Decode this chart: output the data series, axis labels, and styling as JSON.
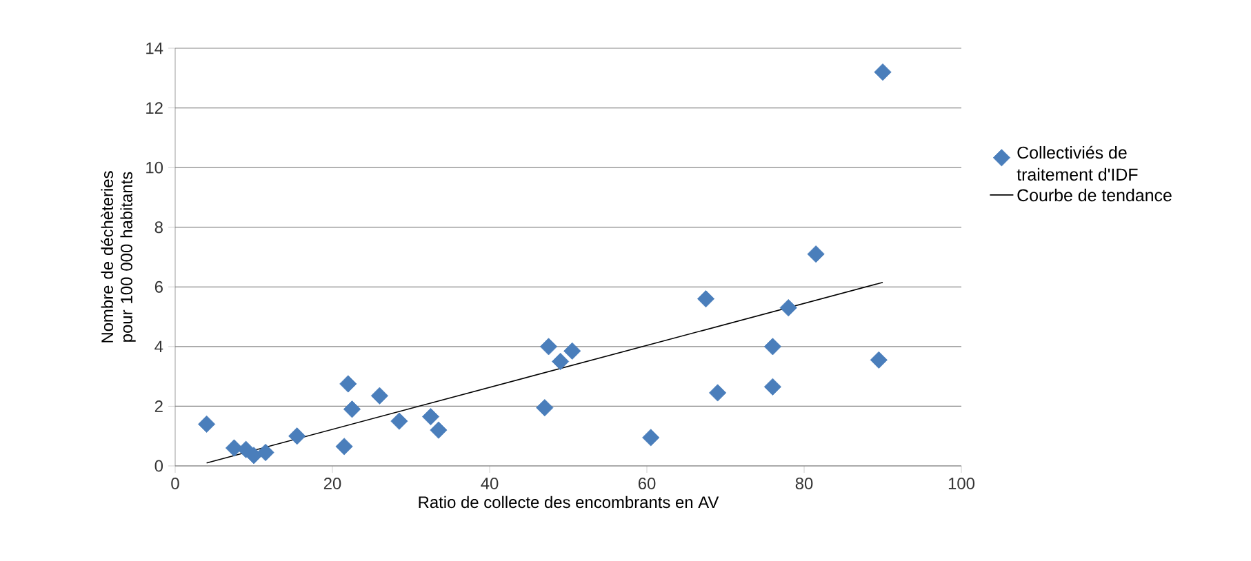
{
  "chart_data": {
    "type": "scatter",
    "xlabel": "Ratio de collecte des encombrants en AV",
    "ylabel": "Nombre de déchèteries pour 100 000 habitants",
    "xlim": [
      0,
      100
    ],
    "ylim": [
      0,
      14
    ],
    "xticks": [
      0,
      20,
      40,
      60,
      80,
      100
    ],
    "yticks": [
      0,
      2,
      4,
      6,
      8,
      10,
      12,
      14
    ],
    "grid": "y",
    "legend": "right",
    "marker": "diamond",
    "series": [
      {
        "name": "Collectiviés de traitement d'IDF",
        "color": "#4a7ebb",
        "x": [
          4,
          7.5,
          9,
          10,
          11.5,
          15.5,
          21.5,
          22,
          22.5,
          26,
          28.5,
          32.5,
          33.5,
          47,
          47.5,
          49,
          50.5,
          60.5,
          67.5,
          69,
          76,
          76,
          78,
          81.5,
          89.5,
          90
        ],
        "values": [
          1.4,
          0.6,
          0.55,
          0.35,
          0.45,
          1.0,
          0.65,
          2.75,
          1.9,
          2.35,
          1.5,
          1.65,
          1.2,
          1.95,
          4.0,
          3.5,
          3.85,
          0.95,
          5.6,
          2.45,
          4.0,
          2.65,
          5.3,
          7.1,
          3.55,
          13.2
        ]
      },
      {
        "name": "Courbe de tendance",
        "type": "line",
        "color": "#000000",
        "line_style": "solid",
        "marker": "none",
        "x": [
          4,
          90
        ],
        "values": [
          0.1,
          6.15
        ]
      }
    ]
  }
}
